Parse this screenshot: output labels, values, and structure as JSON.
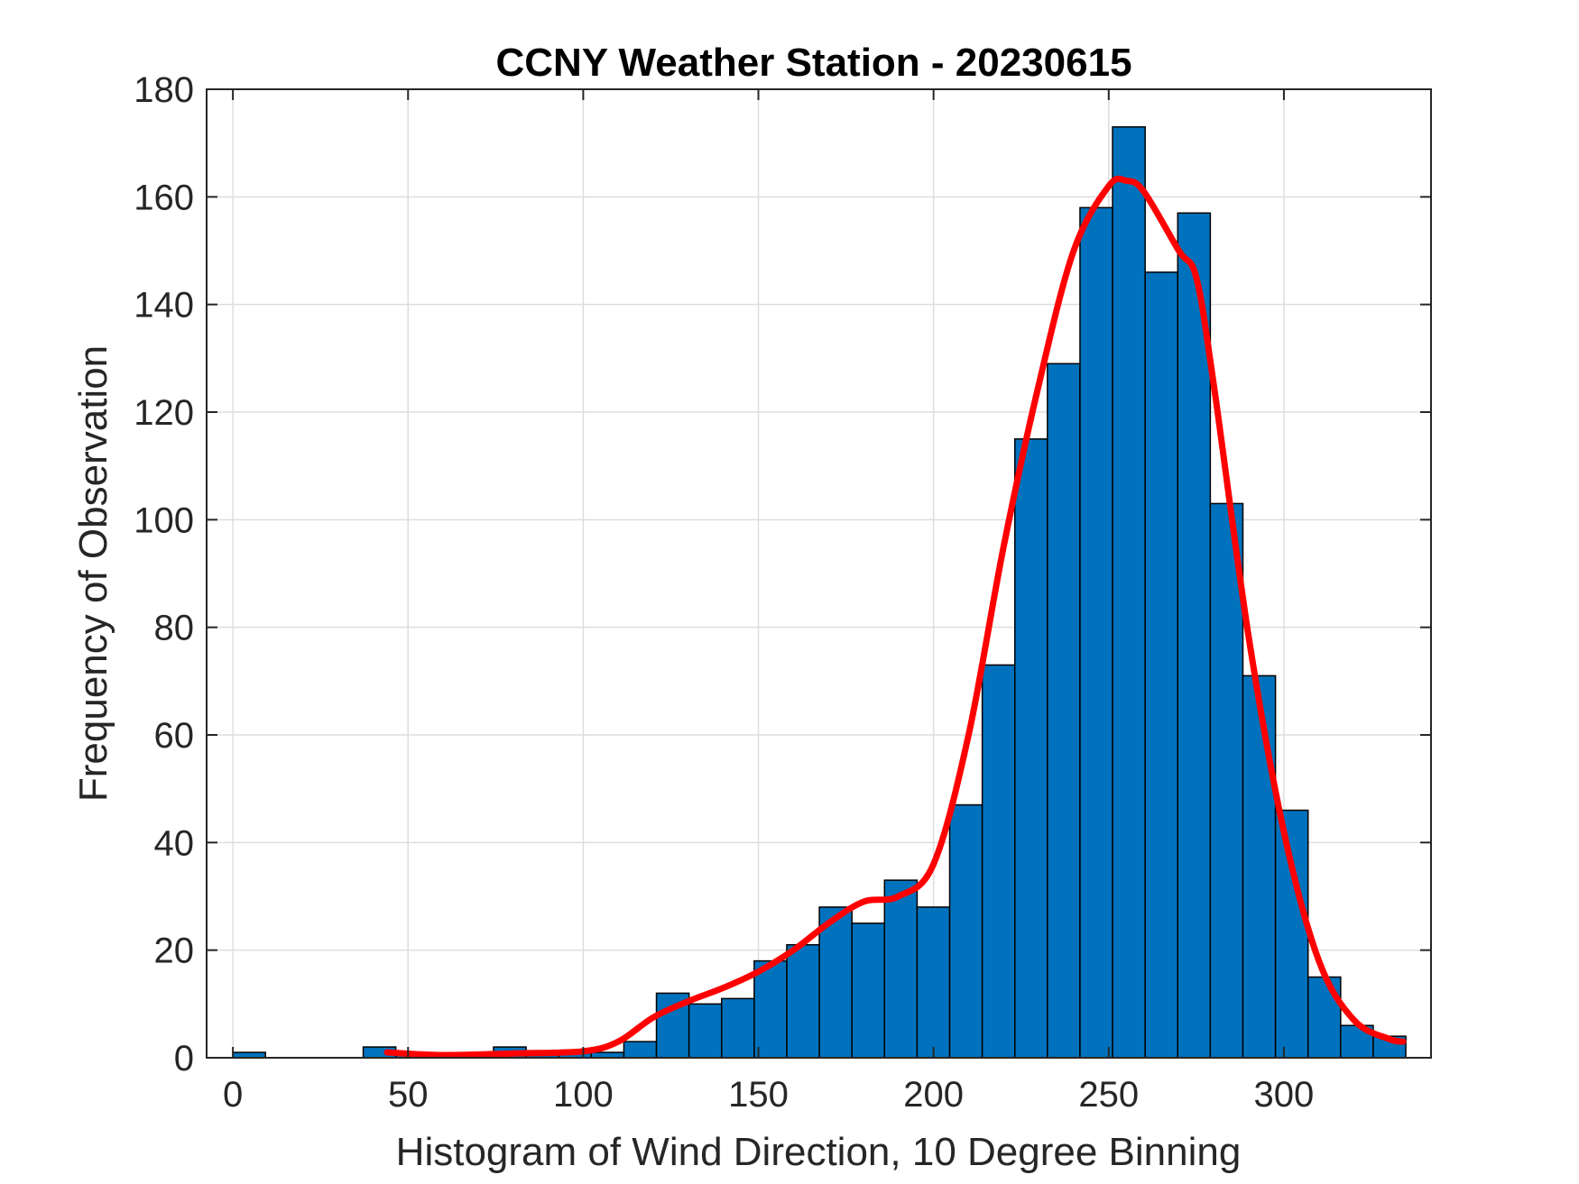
{
  "chart_data": {
    "type": "bar",
    "title": "CCNY Weather Station - 20230615",
    "xlabel": "Histogram of Wind Direction, 10 Degree Binning",
    "ylabel": "Frequency of Observation",
    "xlim": [
      -7.5,
      342
    ],
    "ylim": [
      0,
      180
    ],
    "xticks": [
      0,
      50,
      100,
      150,
      200,
      250,
      300
    ],
    "yticks": [
      0,
      20,
      40,
      60,
      80,
      100,
      120,
      140,
      160,
      180
    ],
    "grid": true,
    "bin_width": 9.3,
    "bins": [
      {
        "x": 0,
        "count": 1
      },
      {
        "x": 9.3,
        "count": 0
      },
      {
        "x": 18.6,
        "count": 0
      },
      {
        "x": 27.9,
        "count": 0
      },
      {
        "x": 37.2,
        "count": 2
      },
      {
        "x": 46.5,
        "count": 1
      },
      {
        "x": 55.8,
        "count": 0
      },
      {
        "x": 65.1,
        "count": 0
      },
      {
        "x": 74.4,
        "count": 2
      },
      {
        "x": 83.7,
        "count": 1
      },
      {
        "x": 93.0,
        "count": 1
      },
      {
        "x": 102.3,
        "count": 1
      },
      {
        "x": 111.6,
        "count": 3
      },
      {
        "x": 120.9,
        "count": 12
      },
      {
        "x": 130.2,
        "count": 10
      },
      {
        "x": 139.5,
        "count": 11
      },
      {
        "x": 148.8,
        "count": 18
      },
      {
        "x": 158.1,
        "count": 21
      },
      {
        "x": 167.4,
        "count": 28
      },
      {
        "x": 176.7,
        "count": 25
      },
      {
        "x": 186.0,
        "count": 33
      },
      {
        "x": 195.3,
        "count": 28
      },
      {
        "x": 204.6,
        "count": 47
      },
      {
        "x": 213.9,
        "count": 73
      },
      {
        "x": 223.2,
        "count": 115
      },
      {
        "x": 232.5,
        "count": 129
      },
      {
        "x": 241.8,
        "count": 158
      },
      {
        "x": 251.1,
        "count": 173
      },
      {
        "x": 260.4,
        "count": 146
      },
      {
        "x": 269.7,
        "count": 157
      },
      {
        "x": 279.0,
        "count": 103
      },
      {
        "x": 288.3,
        "count": 71
      },
      {
        "x": 297.6,
        "count": 46
      },
      {
        "x": 306.9,
        "count": 15
      },
      {
        "x": 316.2,
        "count": 6
      },
      {
        "x": 325.5,
        "count": 4
      }
    ],
    "curve": {
      "x": [
        44,
        60,
        80,
        100,
        110,
        120,
        130,
        140,
        150,
        160,
        170,
        180,
        190,
        200,
        210,
        220,
        230,
        240,
        250,
        255,
        260,
        270,
        275,
        280,
        290,
        300,
        310,
        320,
        330,
        334
      ],
      "y": [
        1,
        0.5,
        0.8,
        1.2,
        3,
        7.5,
        10.5,
        13,
        16,
        20,
        25,
        29,
        30,
        36,
        60,
        95,
        125,
        150,
        162,
        163,
        161,
        150,
        145,
        125,
        78,
        42,
        18,
        7,
        3.5,
        3
      ]
    },
    "colors": {
      "bar_fill": "#0072BD",
      "bar_edge": "#000000",
      "curve": "#FF0000",
      "grid": "#DDDDDD",
      "axes": "#262626"
    }
  }
}
